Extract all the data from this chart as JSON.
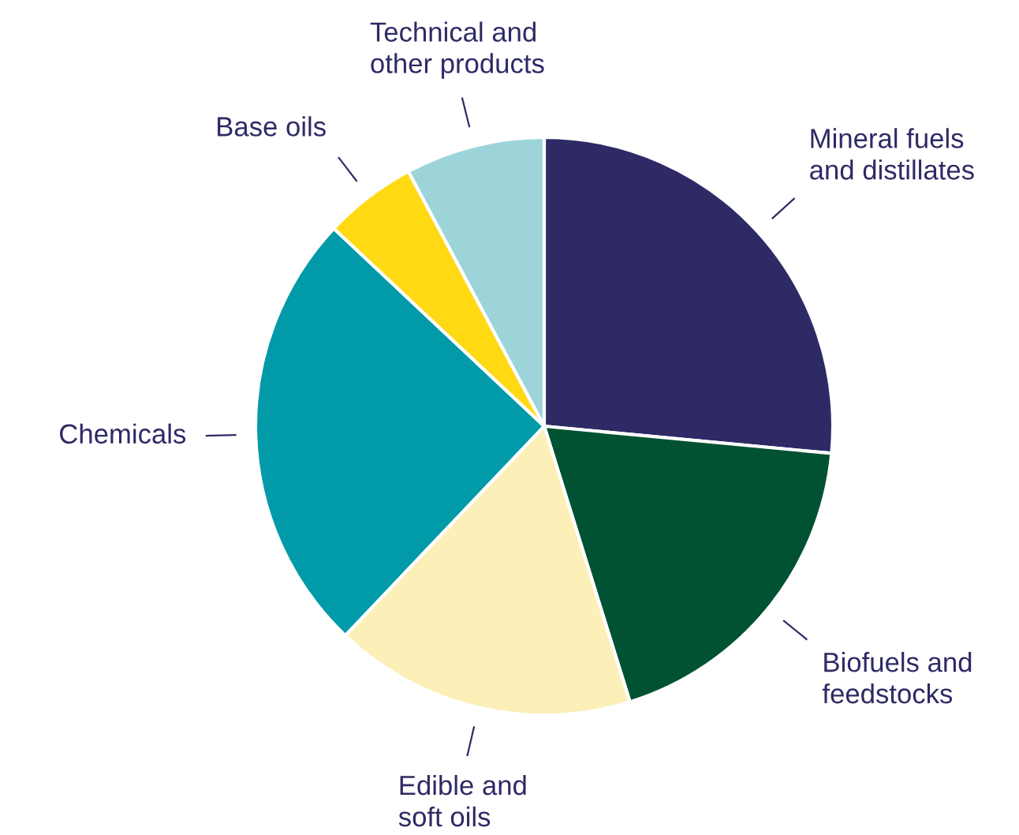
{
  "chart_data": {
    "type": "pie",
    "categories": [
      "Mineral fuels\nand distillates",
      "Biofuels and\nfeedstocks",
      "Edible and\nsoft oils",
      "Chemicals",
      "Base oils",
      "Technical and\nother products"
    ],
    "values": [
      26.5,
      18.7,
      16.9,
      24.9,
      5.2,
      7.8
    ],
    "colors": [
      "#2e2a66",
      "#005233",
      "#fcf0b8",
      "#009aa8",
      "#ffd914",
      "#9dd4da"
    ]
  }
}
